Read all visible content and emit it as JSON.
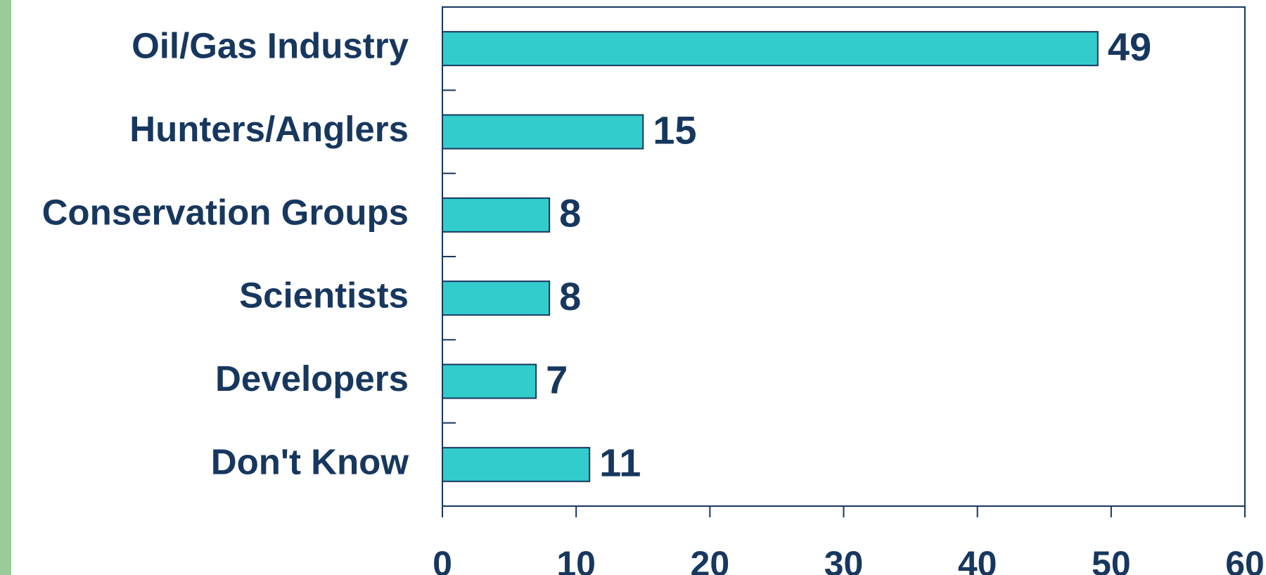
{
  "chart_data": {
    "type": "bar",
    "orientation": "horizontal",
    "categories": [
      "Oil/Gas Industry",
      "Hunters/Anglers",
      "Conservation Groups",
      "Scientists",
      "Developers",
      "Don't Know"
    ],
    "values": [
      49,
      15,
      8,
      8,
      7,
      11
    ],
    "color": "#33cccc",
    "xlim": [
      0,
      60
    ],
    "xticks": [
      0,
      10,
      20,
      30,
      40,
      50,
      60
    ]
  }
}
